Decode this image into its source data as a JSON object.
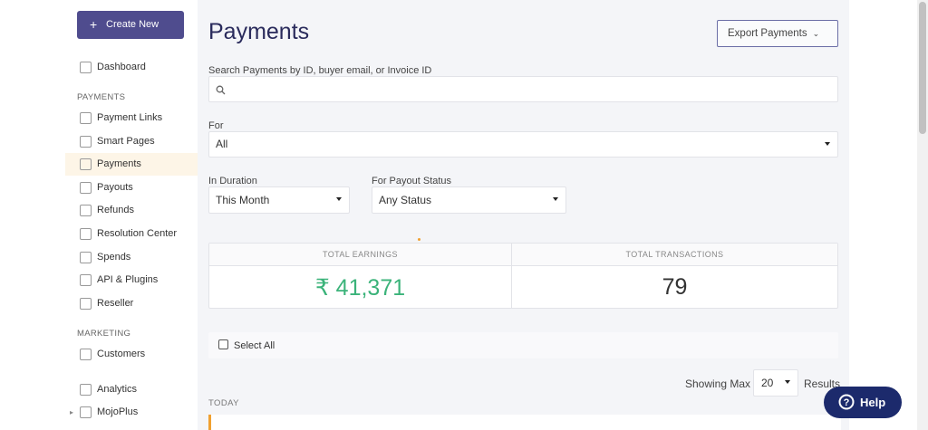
{
  "sidebar": {
    "create_button": "Create New",
    "dashboard": "Dashboard",
    "sections": [
      {
        "title": "PAYMENTS",
        "items": [
          "Payment Links",
          "Smart Pages",
          "Payments",
          "Payouts",
          "Refunds",
          "Resolution Center",
          "Spends",
          "API & Plugins",
          "Reseller"
        ]
      },
      {
        "title": "MARKETING",
        "items": [
          "Customers"
        ]
      }
    ],
    "extra": [
      "Analytics",
      "MojoPlus"
    ]
  },
  "header": {
    "title": "Payments",
    "export_button": "Export Payments"
  },
  "filters": {
    "search_label": "Search Payments by ID, buyer email, or Invoice ID",
    "for_label": "For",
    "for_value": "All",
    "duration_label": "In Duration",
    "duration_value": "This Month",
    "payout_label": "For Payout Status",
    "payout_value": "Any Status"
  },
  "summary": {
    "earnings_label": "TOTAL EARNINGS",
    "earnings_value": "₹ 41,371",
    "transactions_label": "TOTAL TRANSACTIONS",
    "transactions_value": 79
  },
  "list": {
    "select_all": "Select All",
    "showing_label": "Showing Max",
    "page_size": 20,
    "results_label": "Results",
    "group": "TODAY"
  },
  "help": "Help"
}
